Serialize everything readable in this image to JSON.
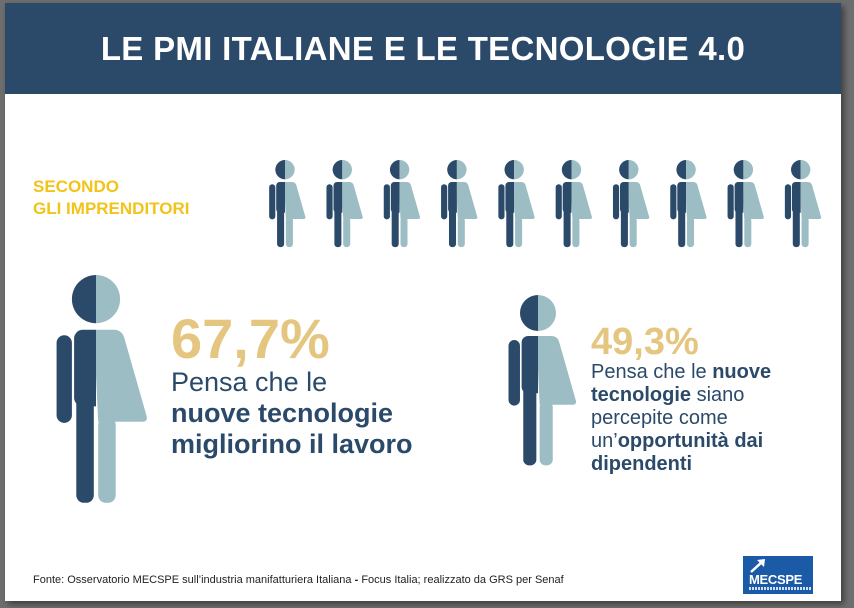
{
  "header": {
    "title": "LE PMI ITALIANE E LE TECNOLOGIE 4.0"
  },
  "subtitle": {
    "line1": "SECONDO",
    "line2": "GLI IMPRENDITORI"
  },
  "icon_row": {
    "count": 10,
    "dark_color": "#2b4a6a",
    "light_color": "#9dbdc4"
  },
  "stat1": {
    "percent": "67,7%",
    "line1": "Pensa che le",
    "line2": "nuove tecnologie",
    "line3": "migliorino il lavoro"
  },
  "stat2": {
    "percent": "49,3%",
    "line1_normal": "Pensa che le ",
    "line1_bold": "nuove",
    "line2_bold": "tecnologie",
    "line2_normal": " siano",
    "line3": "percepite come",
    "line4_normal": "un’",
    "line4_bold": "opportunità dai",
    "line5_bold": "dipendenti"
  },
  "source": {
    "part1": "Fonte: Osservatorio MECSPE sull’industria manifatturiera Italiana",
    "separator": " - ",
    "part2": "Focus Italia; realizzato da GRS per Senaf"
  },
  "logo": {
    "text": "MECSPE",
    "brand_color": "#1a5aa6",
    "icon": "arrow-up-right-icon"
  },
  "colors": {
    "header_bg": "#2b4a6a",
    "accent_yellow": "#f2c318",
    "percent_gold": "#e5c680",
    "text_navy": "#2b4a6a"
  }
}
